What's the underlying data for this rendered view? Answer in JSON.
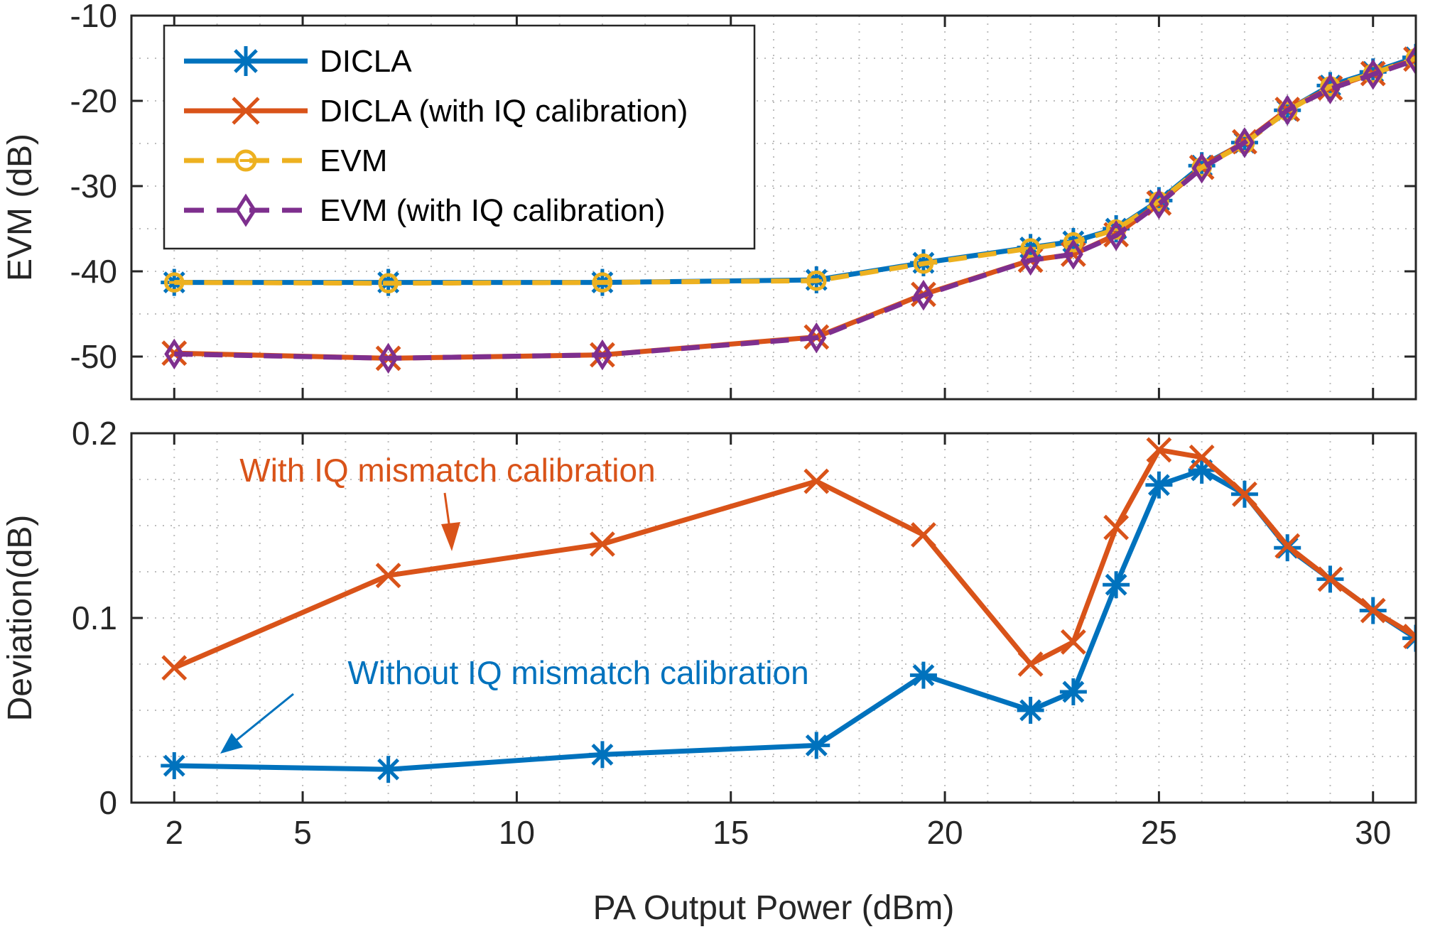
{
  "chart_data": [
    {
      "type": "line",
      "xlabel": "",
      "ylabel": "EVM (dB)",
      "xlim": [
        1,
        31
      ],
      "ylim": [
        -55,
        -10
      ],
      "xticks": [
        2,
        5,
        10,
        15,
        20,
        25,
        30
      ],
      "yticks": [
        -50,
        -40,
        -30,
        -20,
        -10
      ],
      "grid": "dotted minor+major",
      "legend_position": "top-left",
      "x": [
        2,
        7,
        12,
        17,
        19.5,
        22,
        23,
        24,
        25,
        26,
        27,
        28,
        29,
        30,
        31
      ],
      "series": [
        {
          "name": "DICLA",
          "color": "#0072BD",
          "marker": "asterisk",
          "line_style": "solid",
          "values": [
            -41.3,
            -41.3,
            -41.3,
            -41.0,
            -39.0,
            -37.2,
            -36.5,
            -35.0,
            -31.7,
            -27.6,
            -24.9,
            -21.1,
            -18.2,
            -16.6,
            -14.9
          ]
        },
        {
          "name": "DICLA (with IQ calibration)",
          "color": "#D95319",
          "marker": "x",
          "line_style": "solid",
          "values": [
            -49.6,
            -50.2,
            -49.8,
            -47.7,
            -42.7,
            -38.7,
            -38.0,
            -35.7,
            -32.0,
            -27.8,
            -24.8,
            -21.0,
            -18.5,
            -16.8,
            -15.1
          ]
        },
        {
          "name": "EVM",
          "color": "#EDB120",
          "marker": "circle",
          "line_style": "dashed",
          "values": [
            -41.3,
            -41.4,
            -41.3,
            -41.1,
            -39.1,
            -37.3,
            -36.6,
            -35.1,
            -31.8,
            -27.8,
            -25.0,
            -21.2,
            -18.3,
            -16.8,
            -15.0
          ]
        },
        {
          "name": "EVM (with IQ calibration)",
          "color": "#7E2F8E",
          "marker": "diamond",
          "line_style": "dashed",
          "values": [
            -49.7,
            -50.2,
            -49.8,
            -47.8,
            -42.8,
            -38.7,
            -38.0,
            -35.8,
            -32.1,
            -27.9,
            -24.9,
            -21.1,
            -18.6,
            -16.9,
            -15.2
          ]
        }
      ]
    },
    {
      "type": "line",
      "xlabel": "PA Output Power (dBm)",
      "ylabel": "Deviation(dB)",
      "xlim": [
        1,
        31
      ],
      "ylim": [
        0,
        0.2
      ],
      "xticks": [
        2,
        5,
        10,
        15,
        20,
        25,
        30
      ],
      "yticks": [
        0,
        0.1,
        0.2
      ],
      "grid": "dotted minor+major",
      "x": [
        2,
        7,
        12,
        17,
        19.5,
        22,
        23,
        24,
        25,
        26,
        27,
        28,
        29,
        30,
        31
      ],
      "series": [
        {
          "color": "#0072BD",
          "marker": "asterisk",
          "values": [
            0.02,
            0.018,
            0.026,
            0.031,
            0.069,
            0.05,
            0.06,
            0.118,
            0.172,
            0.18,
            0.167,
            0.138,
            0.121,
            0.104,
            0.089
          ]
        },
        {
          "color": "#D95319",
          "marker": "x",
          "values": [
            0.073,
            0.123,
            0.14,
            0.174,
            0.145,
            0.075,
            0.087,
            0.149,
            0.191,
            0.187,
            0.167,
            0.139,
            0.121,
            0.104,
            0.09
          ]
        }
      ],
      "annotations": [
        {
          "text": "With IQ mismatch calibration",
          "color": "#D95319"
        },
        {
          "text": "Without IQ mismatch calibration",
          "color": "#0072BD"
        }
      ]
    }
  ]
}
